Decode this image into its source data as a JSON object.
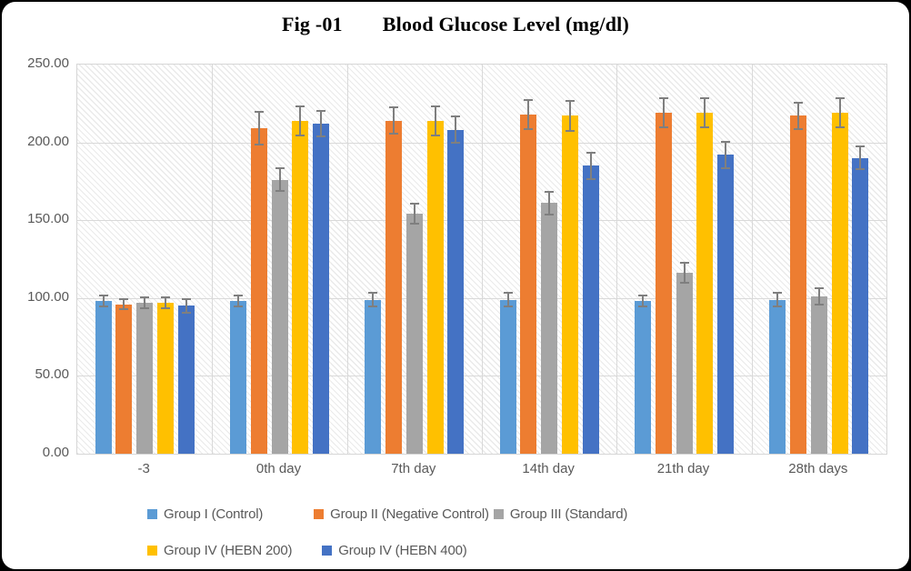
{
  "title": {
    "prefix": "Fig -01",
    "text": "Blood Glucose Level (mg/dl)"
  },
  "chart_data": {
    "type": "bar",
    "title": "Fig -01  Blood Glucose Level (mg/dl)",
    "xlabel": "",
    "ylabel": "",
    "categories": [
      "-3",
      "0th day",
      "7th day",
      "14th day",
      "21th day",
      "28th days"
    ],
    "series": [
      {
        "name": "Group I (Control)",
        "color": "#5B9BD5",
        "values": [
          98,
          98,
          99,
          99,
          98,
          99
        ],
        "errors": [
          4,
          4,
          5,
          5,
          4,
          5
        ]
      },
      {
        "name": "Group II (Negative Control)",
        "color": "#ED7D31",
        "values": [
          96,
          209,
          214,
          218,
          219,
          217
        ],
        "errors": [
          4,
          11,
          9,
          10,
          10,
          9
        ]
      },
      {
        "name": "Group III (Standard)",
        "color": "#A5A5A5",
        "values": [
          97,
          176,
          154,
          161,
          116,
          101
        ],
        "errors": [
          4,
          8,
          7,
          8,
          7,
          6
        ]
      },
      {
        "name": "Group IV (HEBN 200)",
        "color": "#FFC000",
        "values": [
          97,
          214,
          214,
          217,
          219,
          219
        ],
        "errors": [
          4,
          10,
          10,
          10,
          10,
          10
        ]
      },
      {
        "name": "Group IV (HEBN 400)",
        "color": "#4472C4",
        "values": [
          95,
          212,
          208,
          185,
          192,
          190
        ],
        "errors": [
          5,
          9,
          9,
          9,
          9,
          8
        ]
      }
    ],
    "error_bars": true,
    "ylim": [
      0,
      250
    ],
    "ytick_interval": 50,
    "ytick_labels": [
      "0.00",
      "50.00",
      "100.00",
      "150.00",
      "200.00",
      "250.00"
    ],
    "grid": true,
    "plot_background": "light-diagonal-hatch",
    "legend_position": "bottom",
    "legend_rows": [
      [
        0,
        1,
        2
      ],
      [
        3,
        4
      ]
    ],
    "legend_row_gaps": [
      [
        56,
        5
      ],
      [
        33
      ]
    ]
  },
  "colors": {
    "frame_background": "#000000",
    "card_background": "#FFFFFF",
    "gridline": "#D9D9D9",
    "axis_text": "#595959",
    "error_bar": "#7F7F7F",
    "title_text": "#000000"
  }
}
